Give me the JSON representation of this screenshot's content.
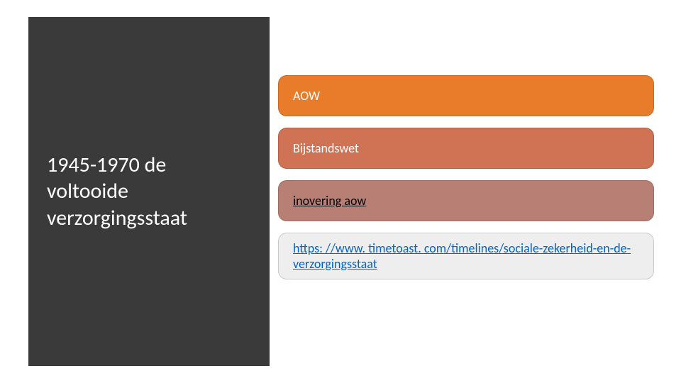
{
  "slide": {
    "title": "1945-1970 de voltooide verzorgingsstaat",
    "title_color": "#ffffff",
    "title_fontsize": 30,
    "left_panel_bg": "#3a3a3a",
    "items": [
      {
        "label": "AOW",
        "bg": "#e87c2b",
        "text_color": "#ffffff",
        "is_link": false
      },
      {
        "label": "Bijstandswet",
        "bg": "#cf7354",
        "text_color": "#ffffff",
        "is_link": false
      },
      {
        "label": "inovering aow",
        "bg": "#b87f74",
        "text_color": "#000000",
        "is_link": true,
        "link_color": "#000000"
      },
      {
        "label": "https: //www. timetoast. com/timelines/sociale-zekerheid-en-de-verzorgingsstaat",
        "bg": "#eeeeee",
        "text_color": "#0563c1",
        "is_link": true,
        "link_color": "#0563c1"
      }
    ],
    "pill_border_radius": 12,
    "pill_fontsize": 18,
    "background_color": "#ffffff"
  }
}
